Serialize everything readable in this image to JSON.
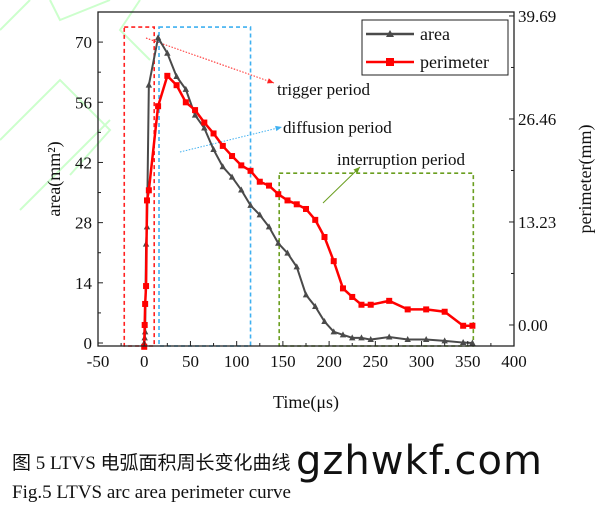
{
  "chart_data": {
    "type": "line",
    "xlabel": "Time(μs)",
    "ylabel_left": "area(mm²)",
    "ylabel_right": "perimeter(mm)",
    "xlim": [
      -50,
      400
    ],
    "ylim_left": [
      -0.7,
      77
    ],
    "ylim_right": [
      -2.7,
      40.2
    ],
    "xticks": [
      "-50",
      "0",
      "50",
      "100",
      "150",
      "200",
      "250",
      "300",
      "350",
      "400"
    ],
    "xtick_values": [
      -50,
      0,
      50,
      100,
      150,
      200,
      250,
      300,
      350,
      400
    ],
    "yticks_left": [
      "0",
      "14",
      "28",
      "42",
      "56",
      "70"
    ],
    "ytick_values_left": [
      0,
      14,
      28,
      42,
      56,
      70
    ],
    "yticks_right": [
      "0.00",
      "13.23",
      "26.46",
      "39.69"
    ],
    "ytick_values_right": [
      0,
      13.23,
      26.46,
      39.69
    ],
    "grid": false,
    "legend_position": "top-right",
    "colors": {
      "area": "#4a4a4a",
      "perimeter": "#ff0000",
      "trigger": "#ff2020",
      "diffusion": "#3fb0f0",
      "interruption": "#6a9e1f"
    },
    "series": [
      {
        "name": "area",
        "axis": "left",
        "marker": "triangle",
        "x": [
          0,
          0.5,
          1,
          2,
          3,
          5,
          15,
          25,
          35,
          45,
          55,
          65,
          75,
          85,
          95,
          105,
          115,
          125,
          135,
          145,
          155,
          165,
          175,
          185,
          195,
          205,
          215,
          225,
          235,
          245,
          265,
          285,
          305,
          325,
          345,
          355
        ],
        "y": [
          0,
          1.2,
          2.6,
          23,
          27,
          60,
          71,
          67.4,
          62,
          59,
          53,
          50,
          45,
          41,
          38.6,
          35.6,
          32,
          29.8,
          27,
          23.2,
          20.9,
          17.7,
          11.2,
          8.5,
          5,
          2.6,
          1.9,
          1.2,
          1.2,
          0.8,
          1.4,
          0.8,
          0.8,
          0.5,
          0.1,
          0
        ]
      },
      {
        "name": "perimeter",
        "axis": "right",
        "marker": "square",
        "x": [
          0,
          0.5,
          1,
          2,
          3,
          5,
          15,
          25,
          35,
          45,
          55,
          65,
          75,
          85,
          95,
          105,
          115,
          125,
          135,
          145,
          155,
          165,
          175,
          185,
          195,
          205,
          215,
          225,
          235,
          245,
          265,
          285,
          305,
          325,
          345,
          355
        ],
        "y": [
          -2.8,
          0,
          2.7,
          5,
          16,
          17.3,
          28.1,
          32,
          30.8,
          28.6,
          27.6,
          26,
          24.6,
          23,
          21.7,
          20.5,
          19.8,
          18.4,
          17.9,
          16.8,
          16,
          15.5,
          14.9,
          13.5,
          11.3,
          8.2,
          4.7,
          3.6,
          2.6,
          2.6,
          3.1,
          2,
          2,
          1.7,
          -0.1,
          -0.1
        ]
      }
    ],
    "regions": [
      {
        "label": "trigger period",
        "x": [
          -21.6,
          10.8
        ],
        "top_area": 73.5,
        "color": "#ff2020"
      },
      {
        "label": "diffusion period",
        "x": [
          16,
          115
        ],
        "top_area": 73.5,
        "color": "#3fb0f0"
      },
      {
        "label": "interruption period",
        "x": [
          146,
          356
        ],
        "top_area": 39.5,
        "color": "#6a9e1f"
      }
    ]
  },
  "caption_cn": "图 5 LTVS 电弧面积周长变化曲线",
  "caption_en": "Fig.5 LTVS arc area perimeter curve",
  "watermark": "gzhwkf.com"
}
